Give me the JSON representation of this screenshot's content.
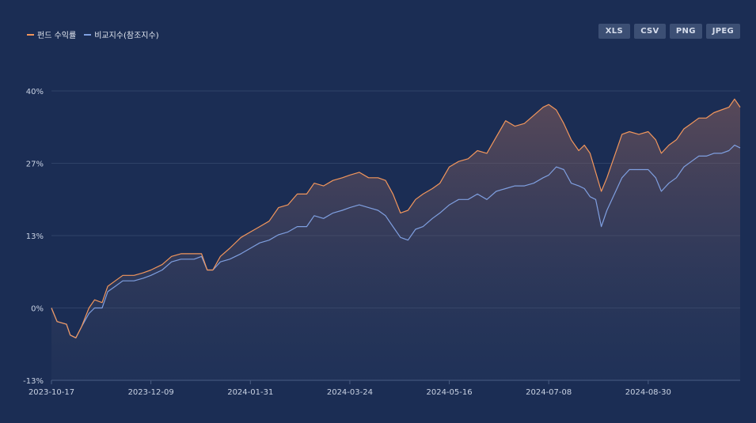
{
  "legend": [
    {
      "label": "펀드 수익률",
      "color": "#f2965c"
    },
    {
      "label": "비교지수(참조지수)",
      "color": "#7f9fe0"
    }
  ],
  "export_buttons": [
    "XLS",
    "CSV",
    "PNG",
    "JPEG"
  ],
  "colors": {
    "background": "#1b2d54",
    "grid": "#2f4268",
    "fund_line": "#f2965c",
    "benchmark_line": "#7f9fe0",
    "button_bg": "#3c4f74"
  },
  "chart_data": {
    "type": "line",
    "title": "",
    "xlabel": "",
    "ylabel": "",
    "ylim": [
      -13.33,
      40
    ],
    "y_ticks": [
      40,
      26.67,
      13.33,
      0,
      -13.33
    ],
    "y_tick_labels": [
      "40%",
      "27%",
      "13%",
      "0%",
      "-13%"
    ],
    "x_range": [
      "2023-10-17",
      "2024-10-18"
    ],
    "x_ticks": [
      "2023-10-17",
      "2023-12-09",
      "2024-01-31",
      "2024-03-24",
      "2024-05-16",
      "2024-07-08",
      "2024-08-30"
    ],
    "grid": "horizontal",
    "legend_position": "top-left",
    "series": [
      {
        "name": "펀드 수익률",
        "points": [
          [
            "2023-10-17",
            0.0
          ],
          [
            "2023-10-20",
            -2.5
          ],
          [
            "2023-10-25",
            -3.0
          ],
          [
            "2023-10-27",
            -5.0
          ],
          [
            "2023-10-30",
            -5.5
          ],
          [
            "2023-11-02",
            -3.5
          ],
          [
            "2023-11-06",
            0.0
          ],
          [
            "2023-11-09",
            1.5
          ],
          [
            "2023-11-13",
            1.0
          ],
          [
            "2023-11-16",
            4.0
          ],
          [
            "2023-11-20",
            5.0
          ],
          [
            "2023-11-24",
            6.0
          ],
          [
            "2023-11-30",
            6.0
          ],
          [
            "2023-12-05",
            6.5
          ],
          [
            "2023-12-09",
            7.0
          ],
          [
            "2023-12-15",
            8.0
          ],
          [
            "2023-12-20",
            9.5
          ],
          [
            "2023-12-25",
            10.0
          ],
          [
            "2024-01-01",
            10.0
          ],
          [
            "2024-01-05",
            10.0
          ],
          [
            "2024-01-08",
            7.0
          ],
          [
            "2024-01-11",
            7.0
          ],
          [
            "2024-01-15",
            9.5
          ],
          [
            "2024-01-20",
            11.0
          ],
          [
            "2024-01-26",
            13.0
          ],
          [
            "2024-01-31",
            14.0
          ],
          [
            "2024-02-05",
            15.0
          ],
          [
            "2024-02-10",
            16.0
          ],
          [
            "2024-02-15",
            18.5
          ],
          [
            "2024-02-20",
            19.0
          ],
          [
            "2024-02-25",
            21.0
          ],
          [
            "2024-03-01",
            21.0
          ],
          [
            "2024-03-05",
            23.0
          ],
          [
            "2024-03-10",
            22.5
          ],
          [
            "2024-03-15",
            23.5
          ],
          [
            "2024-03-20",
            24.0
          ],
          [
            "2024-03-24",
            24.5
          ],
          [
            "2024-03-29",
            25.0
          ],
          [
            "2024-04-03",
            24.0
          ],
          [
            "2024-04-08",
            24.0
          ],
          [
            "2024-04-12",
            23.5
          ],
          [
            "2024-04-16",
            21.0
          ],
          [
            "2024-04-20",
            17.5
          ],
          [
            "2024-04-24",
            18.0
          ],
          [
            "2024-04-28",
            20.0
          ],
          [
            "2024-05-02",
            21.0
          ],
          [
            "2024-05-07",
            22.0
          ],
          [
            "2024-05-11",
            23.0
          ],
          [
            "2024-05-16",
            26.0
          ],
          [
            "2024-05-21",
            27.0
          ],
          [
            "2024-05-26",
            27.5
          ],
          [
            "2024-05-31",
            29.0
          ],
          [
            "2024-06-05",
            28.5
          ],
          [
            "2024-06-10",
            31.5
          ],
          [
            "2024-06-15",
            34.5
          ],
          [
            "2024-06-20",
            33.5
          ],
          [
            "2024-06-25",
            34.0
          ],
          [
            "2024-06-30",
            35.5
          ],
          [
            "2024-07-05",
            37.0
          ],
          [
            "2024-07-08",
            37.5
          ],
          [
            "2024-07-12",
            36.5
          ],
          [
            "2024-07-16",
            34.0
          ],
          [
            "2024-07-20",
            31.0
          ],
          [
            "2024-07-24",
            29.0
          ],
          [
            "2024-07-27",
            30.0
          ],
          [
            "2024-07-30",
            28.5
          ],
          [
            "2024-08-02",
            25.0
          ],
          [
            "2024-08-05",
            21.5
          ],
          [
            "2024-08-08",
            24.0
          ],
          [
            "2024-08-12",
            28.0
          ],
          [
            "2024-08-16",
            32.0
          ],
          [
            "2024-08-20",
            32.5
          ],
          [
            "2024-08-25",
            32.0
          ],
          [
            "2024-08-30",
            32.5
          ],
          [
            "2024-09-03",
            31.0
          ],
          [
            "2024-09-06",
            28.5
          ],
          [
            "2024-09-10",
            30.0
          ],
          [
            "2024-09-14",
            31.0
          ],
          [
            "2024-09-18",
            33.0
          ],
          [
            "2024-09-22",
            34.0
          ],
          [
            "2024-09-26",
            35.0
          ],
          [
            "2024-09-30",
            35.0
          ],
          [
            "2024-10-04",
            36.0
          ],
          [
            "2024-10-08",
            36.5
          ],
          [
            "2024-10-12",
            37.0
          ],
          [
            "2024-10-15",
            38.5
          ],
          [
            "2024-10-18",
            37.0
          ]
        ]
      },
      {
        "name": "비교지수(참조지수)",
        "points": [
          [
            "2023-10-17",
            0.0
          ],
          [
            "2023-10-20",
            -2.5
          ],
          [
            "2023-10-25",
            -3.0
          ],
          [
            "2023-10-27",
            -5.0
          ],
          [
            "2023-10-30",
            -5.5
          ],
          [
            "2023-11-02",
            -3.5
          ],
          [
            "2023-11-06",
            -1.0
          ],
          [
            "2023-11-09",
            0.0
          ],
          [
            "2023-11-13",
            0.0
          ],
          [
            "2023-11-16",
            3.0
          ],
          [
            "2023-11-20",
            4.0
          ],
          [
            "2023-11-24",
            5.0
          ],
          [
            "2023-11-30",
            5.0
          ],
          [
            "2023-12-05",
            5.5
          ],
          [
            "2023-12-09",
            6.0
          ],
          [
            "2023-12-15",
            7.0
          ],
          [
            "2023-12-20",
            8.5
          ],
          [
            "2023-12-25",
            9.0
          ],
          [
            "2024-01-01",
            9.0
          ],
          [
            "2024-01-05",
            9.5
          ],
          [
            "2024-01-08",
            7.0
          ],
          [
            "2024-01-11",
            7.0
          ],
          [
            "2024-01-15",
            8.5
          ],
          [
            "2024-01-20",
            9.0
          ],
          [
            "2024-01-26",
            10.0
          ],
          [
            "2024-01-31",
            11.0
          ],
          [
            "2024-02-05",
            12.0
          ],
          [
            "2024-02-10",
            12.5
          ],
          [
            "2024-02-15",
            13.5
          ],
          [
            "2024-02-20",
            14.0
          ],
          [
            "2024-02-25",
            15.0
          ],
          [
            "2024-03-01",
            15.0
          ],
          [
            "2024-03-05",
            17.0
          ],
          [
            "2024-03-10",
            16.5
          ],
          [
            "2024-03-15",
            17.5
          ],
          [
            "2024-03-20",
            18.0
          ],
          [
            "2024-03-24",
            18.5
          ],
          [
            "2024-03-29",
            19.0
          ],
          [
            "2024-04-03",
            18.5
          ],
          [
            "2024-04-08",
            18.0
          ],
          [
            "2024-04-12",
            17.0
          ],
          [
            "2024-04-16",
            15.0
          ],
          [
            "2024-04-20",
            13.0
          ],
          [
            "2024-04-24",
            12.5
          ],
          [
            "2024-04-28",
            14.5
          ],
          [
            "2024-05-02",
            15.0
          ],
          [
            "2024-05-07",
            16.5
          ],
          [
            "2024-05-11",
            17.5
          ],
          [
            "2024-05-16",
            19.0
          ],
          [
            "2024-05-21",
            20.0
          ],
          [
            "2024-05-26",
            20.0
          ],
          [
            "2024-05-31",
            21.0
          ],
          [
            "2024-06-05",
            20.0
          ],
          [
            "2024-06-10",
            21.5
          ],
          [
            "2024-06-15",
            22.0
          ],
          [
            "2024-06-20",
            22.5
          ],
          [
            "2024-06-25",
            22.5
          ],
          [
            "2024-06-30",
            23.0
          ],
          [
            "2024-07-05",
            24.0
          ],
          [
            "2024-07-08",
            24.5
          ],
          [
            "2024-07-12",
            26.0
          ],
          [
            "2024-07-16",
            25.5
          ],
          [
            "2024-07-20",
            23.0
          ],
          [
            "2024-07-24",
            22.5
          ],
          [
            "2024-07-27",
            22.0
          ],
          [
            "2024-07-30",
            20.5
          ],
          [
            "2024-08-02",
            20.0
          ],
          [
            "2024-08-05",
            15.0
          ],
          [
            "2024-08-08",
            18.0
          ],
          [
            "2024-08-12",
            21.0
          ],
          [
            "2024-08-16",
            24.0
          ],
          [
            "2024-08-20",
            25.5
          ],
          [
            "2024-08-25",
            25.5
          ],
          [
            "2024-08-30",
            25.5
          ],
          [
            "2024-09-03",
            24.0
          ],
          [
            "2024-09-06",
            21.5
          ],
          [
            "2024-09-10",
            23.0
          ],
          [
            "2024-09-14",
            24.0
          ],
          [
            "2024-09-18",
            26.0
          ],
          [
            "2024-09-22",
            27.0
          ],
          [
            "2024-09-26",
            28.0
          ],
          [
            "2024-09-30",
            28.0
          ],
          [
            "2024-10-04",
            28.5
          ],
          [
            "2024-10-08",
            28.5
          ],
          [
            "2024-10-12",
            29.0
          ],
          [
            "2024-10-15",
            30.0
          ],
          [
            "2024-10-18",
            29.5
          ]
        ]
      }
    ]
  }
}
